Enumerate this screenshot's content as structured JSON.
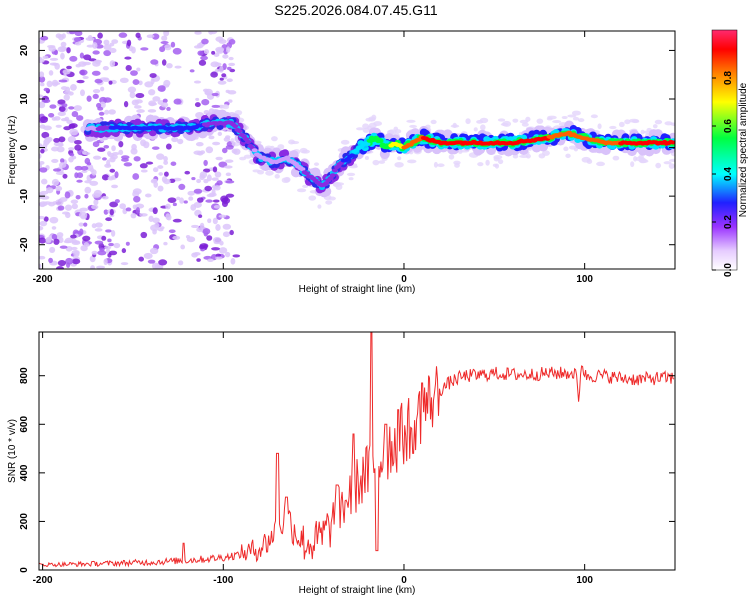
{
  "title": "S225.2026.084.07.45.G11",
  "chart_data": [
    {
      "type": "heatmap",
      "name": "spectrogram",
      "xlabel": "Height of straight line (km)",
      "ylabel": "Frequency (Hz)",
      "xlim": [
        -202,
        150
      ],
      "ylim": [
        -25,
        24
      ],
      "xticks": [
        -200,
        -100,
        0,
        100
      ],
      "yticks": [
        -20,
        -10,
        0,
        10,
        20
      ],
      "colorbar": {
        "label": "Normalized spectral amplitude",
        "range": [
          0,
          1
        ],
        "ticks": [
          "0.0",
          "0.2",
          "0.4",
          "0.6",
          "0.8"
        ]
      },
      "ridge": {
        "x": [
          -175,
          -160,
          -140,
          -120,
          -105,
          -95,
          -88,
          -80,
          -72,
          -65,
          -58,
          -52,
          -45,
          -40,
          -35,
          -30,
          -25,
          -20,
          -15,
          -10,
          -5,
          0,
          5,
          10,
          20,
          40,
          60,
          80,
          90,
          100,
          110,
          120,
          135,
          150
        ],
        "freq": [
          4,
          4,
          4,
          4,
          5,
          5,
          2,
          -2,
          -3,
          -2,
          -4,
          -6,
          -8,
          -6,
          -3,
          -2,
          0,
          1,
          2,
          0,
          1,
          0,
          1,
          2,
          1,
          1,
          1,
          2,
          3,
          2,
          1,
          1,
          1,
          1
        ],
        "amplitude": [
          0.15,
          0.35,
          0.35,
          0.35,
          0.3,
          0.3,
          0.25,
          0.2,
          0.2,
          0.2,
          0.2,
          0.25,
          0.3,
          0.3,
          0.3,
          0.4,
          0.5,
          0.6,
          0.7,
          0.7,
          0.8,
          0.9,
          0.95,
          1.0,
          1.0,
          1.0,
          1.0,
          1.0,
          0.95,
          0.95,
          0.95,
          1.0,
          1.0,
          1.0
        ]
      }
    },
    {
      "type": "line",
      "name": "snr",
      "xlabel": "Height of straight line (km)",
      "ylabel": "SNR (10 * v/v)",
      "xlim": [
        -202,
        150
      ],
      "ylim": [
        0,
        980
      ],
      "xticks": [
        -200,
        -100,
        0,
        100
      ],
      "yticks": [
        0,
        200,
        400,
        600,
        800
      ],
      "color": "#ee2a2a",
      "series": {
        "x": [
          -202,
          -180,
          -160,
          -140,
          -120,
          -110,
          -100,
          -90,
          -80,
          -75,
          -70,
          -65,
          -60,
          -55,
          -50,
          -45,
          -40,
          -35,
          -30,
          -25,
          -20,
          -15,
          -10,
          -5,
          0,
          5,
          10,
          15,
          20,
          25,
          30,
          35,
          40,
          50,
          60,
          70,
          80,
          90,
          95,
          97,
          98,
          100,
          110,
          120,
          130,
          140,
          150
        ],
        "y": [
          22,
          24,
          28,
          32,
          40,
          45,
          52,
          65,
          90,
          120,
          170,
          220,
          160,
          110,
          110,
          140,
          190,
          250,
          310,
          360,
          400,
          440,
          490,
          530,
          560,
          610,
          660,
          700,
          740,
          770,
          790,
          800,
          800,
          810,
          805,
          805,
          810,
          810,
          810,
          690,
          870,
          800,
          800,
          790,
          785,
          790,
          790
        ],
        "spikes": [
          [
            -122,
            110
          ],
          [
            -70,
            480
          ],
          [
            -65,
            300
          ],
          [
            -37,
            350
          ],
          [
            -28,
            560
          ],
          [
            -18,
            980
          ],
          [
            -15,
            80
          ],
          [
            -10,
            600
          ],
          [
            -3,
            660
          ],
          [
            5,
            480
          ],
          [
            10,
            770
          ]
        ]
      }
    }
  ]
}
